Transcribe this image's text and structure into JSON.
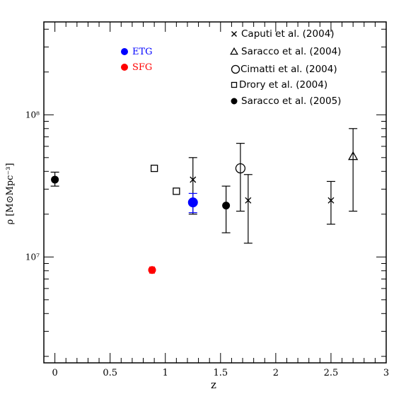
{
  "chart_data": {
    "type": "scatter",
    "xlabel": "z",
    "ylabel": "ρ [M⊙Mpc⁻³]",
    "xlim": [
      -0.1,
      3.0
    ],
    "ylim": [
      1800000.0,
      450000000.0
    ],
    "yscale": "log",
    "x_ticks": [
      "0",
      "0.5",
      "1",
      "1.5",
      "2",
      "2.5",
      "3"
    ],
    "y_ticks": [
      "10⁷",
      "10⁸"
    ],
    "legend_position": "top-right",
    "legend": [
      {
        "marker": "x",
        "label": "Caputi et al. (2004)"
      },
      {
        "marker": "triangle-open",
        "label": "Saracco et al. (2004)"
      },
      {
        "marker": "circle-open",
        "label": "Cimatti et al. (2004)"
      },
      {
        "marker": "square-open",
        "label": "Drory  et al. (2004)"
      },
      {
        "marker": "circle-filled",
        "label": "Saracco et al. (2005)"
      }
    ],
    "annotations": [
      {
        "label": "ETG",
        "color": "#0000ff"
      },
      {
        "label": "SFG",
        "color": "#ff0000"
      }
    ],
    "series": [
      {
        "marker": "x",
        "color": "#000000",
        "points": [
          {
            "x": 1.25,
            "y": 35000000.0,
            "ylo": 20000000.0,
            "yhi": 50000000.0
          },
          {
            "x": 1.75,
            "y": 25000000.0,
            "ylo": 12500000.0,
            "yhi": 38000000.0
          },
          {
            "x": 2.5,
            "y": 25000000.0,
            "ylo": 17000000.0,
            "yhi": 34000000.0
          }
        ]
      },
      {
        "marker": "triangle-open",
        "color": "#000000",
        "points": [
          {
            "x": 2.7,
            "y": 51000000.0,
            "ylo": 21000000.0,
            "yhi": 80000000.0
          }
        ]
      },
      {
        "marker": "circle-open",
        "color": "#000000",
        "points": [
          {
            "x": 1.68,
            "y": 42000000.0,
            "ylo": 21000000.0,
            "yhi": 63000000.0
          }
        ]
      },
      {
        "marker": "square-open",
        "color": "#000000",
        "points": [
          {
            "x": 0.9,
            "y": 42000000.0
          },
          {
            "x": 1.1,
            "y": 29000000.0
          }
        ]
      },
      {
        "marker": "circle-filled",
        "color": "#000000",
        "points": [
          {
            "x": 0.0,
            "y": 35000000.0,
            "ylo": 31500000.0,
            "yhi": 39500000.0
          },
          {
            "x": 1.55,
            "y": 23000000.0,
            "ylo": 14800000.0,
            "yhi": 31500000.0
          }
        ]
      },
      {
        "marker": "circle-filled",
        "color": "#0000ff",
        "points": [
          {
            "x": 1.25,
            "y": 24200000.0,
            "ylo": 20500000.0,
            "yhi": 28000000.0
          }
        ]
      },
      {
        "marker": "circle-filled",
        "color": "#ff0000",
        "points": [
          {
            "x": 0.88,
            "y": 8100000.0,
            "ylo": 7700000.0,
            "yhi": 8500000.0
          }
        ]
      }
    ]
  }
}
